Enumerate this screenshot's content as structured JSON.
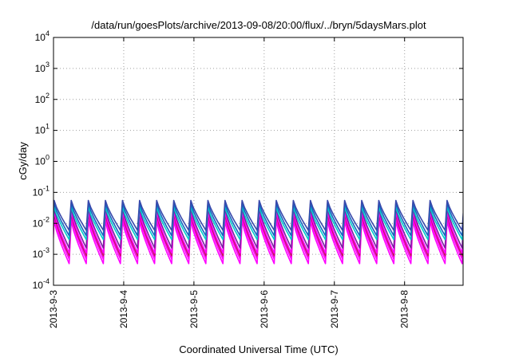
{
  "chart_data": {
    "type": "line",
    "title": "/data/run/goesPlots/archive/2013-09-08/20:00/flux/../bryn/5daysMars.plot",
    "xlabel": "Coordinated Universal Time (UTC)",
    "ylabel": "cGy/day",
    "yscale": "log",
    "ylim": [
      0.0001,
      10000
    ],
    "xlim": [
      "2013-09-03",
      "2013-09-08 20:00"
    ],
    "xlim_days": [
      0,
      5.8333
    ],
    "xticks": [
      "2013-9-3",
      "2013-9-4",
      "2013-9-5",
      "2013-9-6",
      "2013-9-7",
      "2013-9-8"
    ],
    "yticks": [
      {
        "value": 0.0001,
        "base": "10",
        "exp": "-4"
      },
      {
        "value": 0.001,
        "base": "10",
        "exp": "-3"
      },
      {
        "value": 0.01,
        "base": "10",
        "exp": "-2"
      },
      {
        "value": 0.1,
        "base": "10",
        "exp": "-1"
      },
      {
        "value": 1,
        "base": "10",
        "exp": "0"
      },
      {
        "value": 10,
        "base": "10",
        "exp": "1"
      },
      {
        "value": 100,
        "base": "10",
        "exp": "2"
      },
      {
        "value": 1000,
        "base": "10",
        "exp": "3"
      },
      {
        "value": 10000,
        "base": "10",
        "exp": "4"
      }
    ],
    "grid": true,
    "legend": "none",
    "cycles_per_day": 4.11,
    "series": [
      {
        "color": "#ff00ff",
        "peak": 0.012,
        "trough": 0.0005
      },
      {
        "color": "#ff00ff",
        "peak": 0.016,
        "trough": 0.0007
      },
      {
        "color": "#c2185b",
        "peak": 0.02,
        "trough": 0.0009
      },
      {
        "color": "#ff00ff",
        "peak": 0.024,
        "trough": 0.0011
      },
      {
        "color": "#7b1fa2",
        "peak": 0.03,
        "trough": 0.0016
      },
      {
        "color": "#00cccc",
        "peak": 0.034,
        "trough": 0.003
      },
      {
        "color": "#1565c0",
        "peak": 0.045,
        "trough": 0.004
      },
      {
        "color": "#3949ab",
        "peak": 0.055,
        "trough": 0.006
      }
    ]
  }
}
